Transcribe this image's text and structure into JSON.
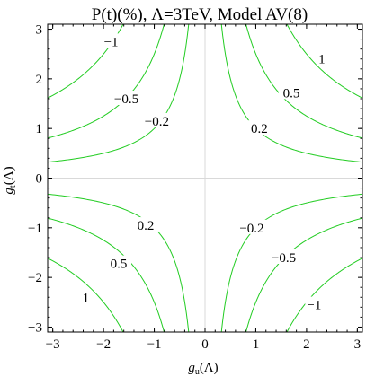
{
  "chart_data": {
    "type": "contour",
    "title": "P(t)(%), Λ=3TeV, Model AV(8)",
    "xlabel": {
      "main": "g",
      "sub": "u",
      "suffix": "(Λ)"
    },
    "ylabel": {
      "main": "g",
      "sub": "t",
      "suffix": "(Λ)"
    },
    "xlim": [
      -3.1,
      3.1
    ],
    "ylim": [
      -3.1,
      3.1
    ],
    "xticks": [
      -3,
      -2,
      -1,
      0,
      1,
      2,
      3
    ],
    "yticks": [
      -3,
      -2,
      -1,
      0,
      1,
      2,
      3
    ],
    "xtick_labels": [
      "−3",
      "−2",
      "−1",
      "0",
      "1",
      "2",
      "3"
    ],
    "ytick_labels": [
      "−3",
      "−2",
      "−1",
      "0",
      "1",
      "2",
      "3"
    ],
    "zero_lines": true,
    "line_color": "#22cc22",
    "relation": "P = 0.2 · g_u · g_t",
    "levels": [
      {
        "value": 1,
        "label": "1",
        "quadrants": [
          "q1",
          "q3"
        ]
      },
      {
        "value": 0.5,
        "label": "0.5",
        "quadrants": [
          "q1",
          "q3"
        ]
      },
      {
        "value": 0.2,
        "label": "0.2",
        "quadrants": [
          "q1",
          "q3"
        ]
      },
      {
        "value": -0.2,
        "label": "−0.2",
        "quadrants": [
          "q2",
          "q4"
        ]
      },
      {
        "value": -0.5,
        "label": "−0.5",
        "quadrants": [
          "q2",
          "q4"
        ]
      },
      {
        "value": -1,
        "label": "−1",
        "quadrants": [
          "q2",
          "q4"
        ]
      }
    ],
    "contour_labels": [
      {
        "text": "−1",
        "x": -1.85,
        "y": 2.75
      },
      {
        "text": "−0.5",
        "x": -1.55,
        "y": 1.6
      },
      {
        "text": "−0.2",
        "x": -0.95,
        "y": 1.15
      },
      {
        "text": "1",
        "x": 2.3,
        "y": 2.4
      },
      {
        "text": "0.5",
        "x": 1.7,
        "y": 1.72
      },
      {
        "text": "0.2",
        "x": 1.07,
        "y": 1.0
      },
      {
        "text": "0.2",
        "x": -1.17,
        "y": -0.95
      },
      {
        "text": "0.5",
        "x": -1.7,
        "y": -1.72
      },
      {
        "text": "1",
        "x": -2.35,
        "y": -2.4
      },
      {
        "text": "−0.2",
        "x": 0.92,
        "y": -1.0
      },
      {
        "text": "−0.5",
        "x": 1.55,
        "y": -1.6
      },
      {
        "text": "−1",
        "x": 2.15,
        "y": -2.55
      }
    ]
  }
}
